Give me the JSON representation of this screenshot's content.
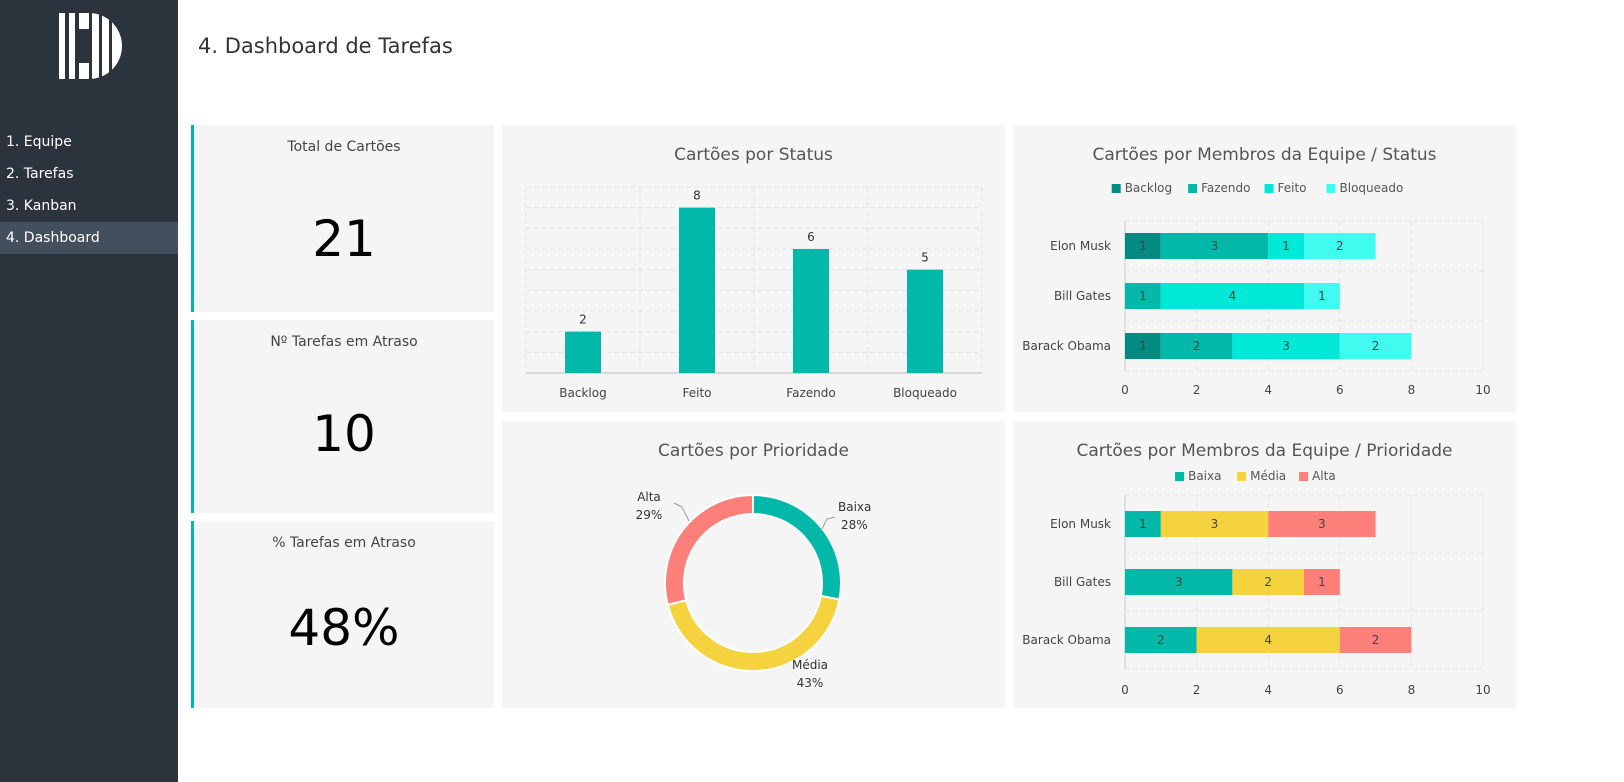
{
  "sidebar": {
    "items": [
      {
        "label": "1. Equipe"
      },
      {
        "label": "2. Tarefas"
      },
      {
        "label": "3. Kanban"
      },
      {
        "label": "4. Dashboard",
        "active": true
      }
    ]
  },
  "page_title": "4. Dashboard de Tarefas",
  "kpis": [
    {
      "label": "Total de Cartões",
      "value": "21"
    },
    {
      "label": "Nº Tarefas em Atraso",
      "value": "10"
    },
    {
      "label": "% Tarefas em Atraso",
      "value": "48%"
    }
  ],
  "colors": {
    "accent": "#02b8a9",
    "sidebar": "#2b333d",
    "backlog": "#048a80",
    "fazendo": "#02b8a9",
    "feito": "#02e8d8",
    "bloqueado": "#40fbef",
    "baixa": "#02b8a9",
    "media": "#f5d33f",
    "alta": "#fd7f79"
  },
  "chart_data": [
    {
      "type": "bar",
      "title": "Cartões por Status",
      "categories": [
        "Backlog",
        "Feito",
        "Fazendo",
        "Bloqueado"
      ],
      "values": [
        2,
        8,
        6,
        5
      ],
      "ylim": [
        0,
        9
      ],
      "grid": true
    },
    {
      "type": "bar",
      "orientation": "horizontal-stacked",
      "title": "Cartões por Membros da Equipe / Status",
      "categories": [
        "Elon Musk",
        "Bill Gates",
        "Barack Obama"
      ],
      "series": [
        {
          "name": "Backlog",
          "values": [
            1,
            0,
            1
          ]
        },
        {
          "name": "Fazendo",
          "values": [
            3,
            1,
            2
          ]
        },
        {
          "name": "Feito",
          "values": [
            1,
            4,
            3
          ]
        },
        {
          "name": "Bloqueado",
          "values": [
            2,
            1,
            2
          ]
        }
      ],
      "xlim": [
        0,
        10
      ],
      "xticks": [
        "0",
        "2",
        "4",
        "6",
        "8",
        "10"
      ],
      "legend": "top"
    },
    {
      "type": "pie",
      "variant": "donut",
      "title": "Cartões por Prioridade",
      "labels": [
        "Baixa",
        "Média",
        "Alta"
      ],
      "values": [
        28,
        43,
        29
      ],
      "value_labels": [
        "28%",
        "43%",
        "29%"
      ]
    },
    {
      "type": "bar",
      "orientation": "horizontal-stacked",
      "title": "Cartões por Membros da Equipe / Prioridade",
      "categories": [
        "Elon Musk",
        "Bill Gates",
        "Barack Obama"
      ],
      "series": [
        {
          "name": "Baixa",
          "values": [
            1,
            3,
            2
          ]
        },
        {
          "name": "Média",
          "values": [
            3,
            2,
            4
          ]
        },
        {
          "name": "Alta",
          "values": [
            3,
            1,
            2
          ]
        }
      ],
      "xlim": [
        0,
        10
      ],
      "xticks": [
        "0",
        "2",
        "4",
        "6",
        "8",
        "10"
      ],
      "legend": "top"
    }
  ]
}
